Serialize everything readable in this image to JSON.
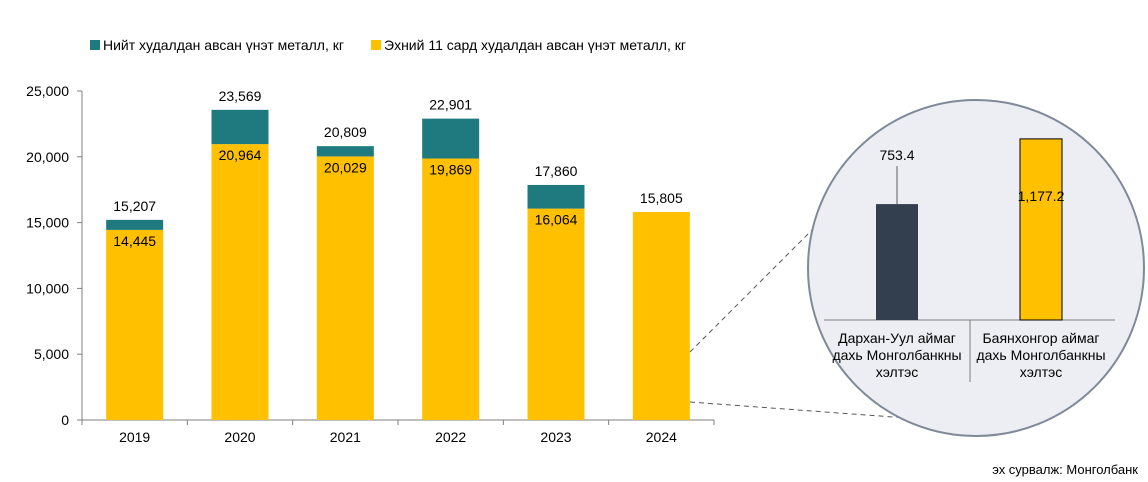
{
  "chart_data": [
    {
      "type": "bar",
      "stacked": true,
      "categories": [
        "2019",
        "2020",
        "2021",
        "2022",
        "2023",
        "2024"
      ],
      "series": [
        {
          "name": "Эхний 11 сард худалдан авсан үнэт металл, кг",
          "color": "#FFC000",
          "values": [
            14445,
            20964,
            20029,
            19869,
            16064,
            15805
          ],
          "labels": [
            "14,445",
            "20,964",
            "20,029",
            "19,869",
            "16,064",
            null
          ]
        },
        {
          "name": "Нийт худалдан авсан үнэт металл, кг",
          "color": "#1F7A80",
          "totals": [
            15207,
            23569,
            20809,
            22901,
            17860,
            null
          ],
          "labels": [
            "15,207",
            "23,569",
            "20,809",
            "22,901",
            "17,860",
            "15,805"
          ]
        }
      ],
      "ylim": [
        0,
        25000
      ],
      "yticks": [
        "0",
        "5,000",
        "10,000",
        "15,000",
        "20,000",
        "25,000"
      ],
      "legend": "top-left"
    },
    {
      "type": "bar",
      "categories": [
        "Дархан-Уул аймаг дахь Монголбанкны хэлтэс",
        "Баянхонгор аймаг дахь Монголбанкны хэлтэс"
      ],
      "category_lines": [
        [
          "Дархан-Уул аймаг",
          "дахь Монголбанкны",
          "хэлтэс"
        ],
        [
          "Баянхонгор аймаг",
          "дахь Монголбанкны",
          "хэлтэс"
        ]
      ],
      "values": [
        753.4,
        1177.2
      ],
      "labels": [
        "753.4",
        "1,177.2"
      ],
      "colors": [
        "#333F4F",
        "#FFC000"
      ],
      "ylim": [
        0,
        1300
      ],
      "inset": "zoom-circle"
    }
  ],
  "source": "эх сурвалж: Монголбанк"
}
